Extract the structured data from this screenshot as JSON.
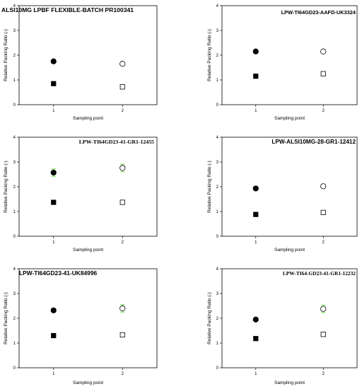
{
  "chart_data": [
    {
      "type": "scatter",
      "title": "ALSI10MG LPBF FLEXIBLE-BATCH PR100341",
      "xlabel": "Sampling point",
      "ylabel": "Relative Packing Ratio (-)",
      "x_ticks": [
        "1",
        "2"
      ],
      "y_ticks": [
        "0",
        "1",
        "2",
        "3",
        "4"
      ],
      "ylim": [
        0,
        4
      ],
      "grid": false,
      "series": [
        {
          "marker": "circle",
          "points": [
            {
              "x": 1,
              "y": 1.75,
              "fill": "filled"
            },
            {
              "x": 2,
              "y": 1.65,
              "fill": "open"
            }
          ]
        },
        {
          "marker": "square",
          "points": [
            {
              "x": 1,
              "y": 0.85,
              "fill": "filled"
            },
            {
              "x": 2,
              "y": 0.72,
              "fill": "open"
            }
          ]
        }
      ]
    },
    {
      "type": "scatter",
      "title": "LPW-TI64GD23-AAFD-UK3324",
      "xlabel": "Sampling point",
      "ylabel": "Relative Packing Ratio (-)",
      "x_ticks": [
        "1",
        "2"
      ],
      "y_ticks": [
        "0",
        "1",
        "2",
        "3",
        "4"
      ],
      "ylim": [
        0,
        4
      ],
      "grid": false,
      "series": [
        {
          "marker": "circle",
          "points": [
            {
              "x": 1,
              "y": 2.15,
              "fill": "filled"
            },
            {
              "x": 2,
              "y": 2.15,
              "fill": "open"
            }
          ]
        },
        {
          "marker": "square",
          "points": [
            {
              "x": 1,
              "y": 1.15,
              "fill": "filled"
            },
            {
              "x": 2,
              "y": 1.25,
              "fill": "open"
            }
          ]
        }
      ]
    },
    {
      "type": "scatter",
      "title": "LPW-TI64GD23-41-GR1-12455",
      "xlabel": "Sampling point",
      "ylabel": "Relative Packing Ratio (-)",
      "x_ticks": [
        "1",
        "2"
      ],
      "y_ticks": [
        "0",
        "1",
        "2",
        "3",
        "4"
      ],
      "ylim": [
        0,
        4
      ],
      "grid": false,
      "series": [
        {
          "marker": "circle",
          "points": [
            {
              "x": 1,
              "y": 2.57,
              "fill": "filled",
              "err": 0.15
            },
            {
              "x": 2,
              "y": 2.76,
              "fill": "open",
              "err": 0.15
            }
          ]
        },
        {
          "marker": "square",
          "points": [
            {
              "x": 1,
              "y": 1.37,
              "fill": "filled"
            },
            {
              "x": 2,
              "y": 1.37,
              "fill": "open"
            }
          ]
        }
      ]
    },
    {
      "type": "scatter",
      "title": "LPW-ALSI10MG-28-GR1-12412",
      "xlabel": "Sampling point",
      "ylabel": "Relative Packing Ratio (-)",
      "x_ticks": [
        "1",
        "2"
      ],
      "y_ticks": [
        "0",
        "1",
        "2",
        "3",
        "4"
      ],
      "ylim": [
        0,
        4
      ],
      "grid": false,
      "series": [
        {
          "marker": "circle",
          "points": [
            {
              "x": 1,
              "y": 1.93,
              "fill": "filled"
            },
            {
              "x": 2,
              "y": 2.02,
              "fill": "open"
            }
          ]
        },
        {
          "marker": "square",
          "points": [
            {
              "x": 1,
              "y": 0.88,
              "fill": "filled"
            },
            {
              "x": 2,
              "y": 0.96,
              "fill": "open"
            }
          ]
        }
      ]
    },
    {
      "type": "scatter",
      "title": "LPW-TI64GD23-41-UK84996",
      "xlabel": "Sampling point",
      "ylabel": "Relative Packing Ratio (-)",
      "x_ticks": [
        "1",
        "2"
      ],
      "y_ticks": [
        "0",
        "1",
        "2",
        "3",
        "4"
      ],
      "ylim": [
        0,
        4
      ],
      "grid": false,
      "series": [
        {
          "marker": "circle",
          "points": [
            {
              "x": 1,
              "y": 2.32,
              "fill": "filled",
              "err": 0.08
            },
            {
              "x": 2,
              "y": 2.4,
              "fill": "open",
              "err": 0.15
            }
          ]
        },
        {
          "marker": "square",
          "points": [
            {
              "x": 1,
              "y": 1.3,
              "fill": "filled"
            },
            {
              "x": 2,
              "y": 1.33,
              "fill": "open"
            }
          ]
        }
      ]
    },
    {
      "type": "scatter",
      "title": "LPW-TI64-GD23-41-GR1-12232",
      "xlabel": "Sampling point",
      "ylabel": "Relative Packing Ratio (-)",
      "x_ticks": [
        "1",
        "2"
      ],
      "y_ticks": [
        "0",
        "1",
        "2",
        "3",
        "4"
      ],
      "ylim": [
        0,
        4
      ],
      "grid": false,
      "series": [
        {
          "marker": "circle",
          "points": [
            {
              "x": 1,
              "y": 1.95,
              "fill": "filled"
            },
            {
              "x": 2,
              "y": 2.38,
              "fill": "open",
              "err": 0.15
            }
          ]
        },
        {
          "marker": "square",
          "points": [
            {
              "x": 1,
              "y": 1.18,
              "fill": "filled"
            },
            {
              "x": 2,
              "y": 1.35,
              "fill": "open"
            }
          ]
        }
      ]
    }
  ],
  "colors": {
    "errorbar": "#66dd44",
    "marker": "#000000",
    "axis": "#000000"
  }
}
